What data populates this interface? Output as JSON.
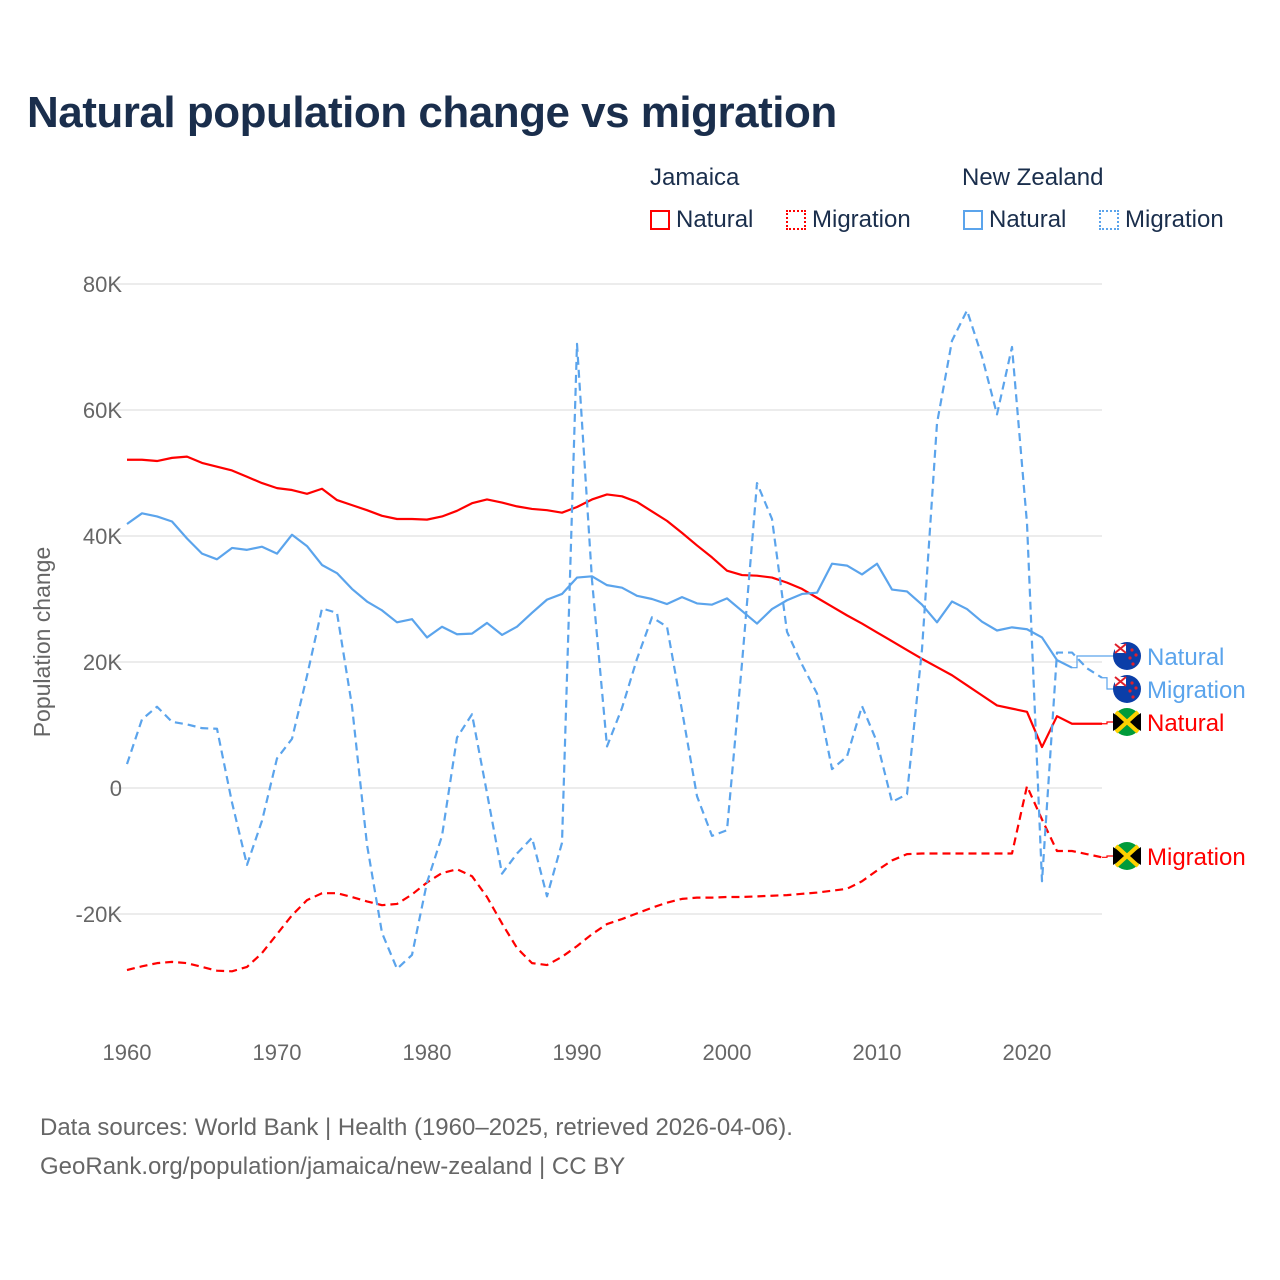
{
  "title": "Natural population change vs migration",
  "legend": {
    "groups": [
      {
        "name": "Jamaica",
        "items": [
          "Natural",
          "Migration"
        ],
        "color": "#ff0000"
      },
      {
        "name": "New Zealand",
        "items": [
          "Natural",
          "Migration"
        ],
        "color": "#5ba4ec"
      }
    ]
  },
  "footer": {
    "line1": "Data sources: World Bank | Health (1960–2025, retrieved 2026-04-06).",
    "line2": "GeoRank.org/population/jamaica/new-zealand | CC BY"
  },
  "chart_data": {
    "type": "line",
    "title": "Natural population change vs migration",
    "xlabel": "",
    "ylabel": "Population change",
    "xlim": [
      1960,
      2025
    ],
    "ylim": [
      -30000,
      80000
    ],
    "x_ticks": [
      "1960",
      "1970",
      "1980",
      "1990",
      "2000",
      "2010",
      "2020"
    ],
    "y_ticks": [
      {
        "v": 80000,
        "label": "80K"
      },
      {
        "v": 60000,
        "label": "60K"
      },
      {
        "v": 40000,
        "label": "40K"
      },
      {
        "v": 20000,
        "label": "20K"
      },
      {
        "v": 0,
        "label": "0"
      },
      {
        "v": -20000,
        "label": "-20K"
      }
    ],
    "grid": true,
    "legend_position": "top-right",
    "series": [
      {
        "name": "Jamaica Natural",
        "end_label": "Natural",
        "color": "#ff0000",
        "dash": false,
        "flag": "jamaica",
        "x_start": 1960,
        "values": [
          52100,
          52100,
          51900,
          52400,
          52600,
          51600,
          51000,
          50400,
          49400,
          48400,
          47600,
          47300,
          46700,
          47500,
          45700,
          44900,
          44100,
          43200,
          42700,
          42700,
          42600,
          43100,
          44000,
          45200,
          45800,
          45300,
          44700,
          44300,
          44100,
          43700,
          44600,
          45800,
          46600,
          46300,
          45400,
          43900,
          42400,
          40500,
          38500,
          36600,
          34500,
          33800,
          33700,
          33400,
          32600,
          31600,
          30200,
          28800,
          27400,
          26100,
          24700,
          23300,
          21900,
          20500,
          19200,
          17900,
          16300,
          14700,
          13100,
          12600,
          12100,
          6500,
          11400,
          10200,
          10200,
          10200
        ]
      },
      {
        "name": "Jamaica Migration",
        "end_label": "Migration",
        "color": "#ff0000",
        "dash": true,
        "flag": "jamaica",
        "x_start": 1960,
        "values": [
          -28900,
          -28300,
          -27800,
          -27600,
          -27800,
          -28400,
          -29000,
          -29100,
          -28400,
          -26200,
          -23200,
          -20200,
          -17800,
          -16700,
          -16700,
          -17300,
          -18000,
          -18600,
          -18400,
          -16900,
          -15000,
          -13500,
          -12900,
          -14000,
          -17300,
          -21500,
          -25400,
          -27800,
          -28100,
          -26800,
          -25100,
          -23200,
          -21600,
          -20800,
          -19900,
          -19000,
          -18200,
          -17600,
          -17400,
          -17400,
          -17300,
          -17300,
          -17200,
          -17100,
          -17000,
          -16800,
          -16600,
          -16300,
          -16000,
          -14800,
          -13100,
          -11500,
          -10500,
          -10400,
          -10400,
          -10400,
          -10400,
          -10400,
          -10400,
          -10400,
          300,
          -5000,
          -10000,
          -10000,
          -10500,
          -11000
        ]
      },
      {
        "name": "New Zealand Natural",
        "end_label": "Natural",
        "color": "#5ba4ec",
        "dash": false,
        "flag": "nz",
        "x_start": 1960,
        "values": [
          41900,
          43600,
          43100,
          42300,
          39600,
          37200,
          36300,
          38100,
          37800,
          38300,
          37200,
          40200,
          38400,
          35400,
          34100,
          31600,
          29600,
          28200,
          26300,
          26800,
          23900,
          25600,
          24400,
          24500,
          26200,
          24300,
          25600,
          27800,
          29900,
          30800,
          33400,
          33600,
          32200,
          31800,
          30500,
          30000,
          29200,
          30300,
          29300,
          29100,
          30100,
          28100,
          26100,
          28400,
          29800,
          30800,
          31000,
          35600,
          35300,
          33900,
          35600,
          31500,
          31200,
          29100,
          26300,
          29600,
          28400,
          26400,
          25000,
          25500,
          25200,
          23900,
          20300,
          19100
        ]
      },
      {
        "name": "New Zealand Migration",
        "end_label": "Migration",
        "color": "#5ba4ec",
        "dash": true,
        "flag": "nz",
        "x_start": 1960,
        "values": [
          3800,
          10900,
          12900,
          10500,
          10100,
          9500,
          9400,
          -2300,
          -12200,
          -5200,
          4700,
          7800,
          17800,
          28500,
          27800,
          13000,
          -9000,
          -23000,
          -28700,
          -26500,
          -15000,
          -7600,
          8000,
          11700,
          -800,
          -13600,
          -10400,
          -7900,
          -17200,
          -8700,
          70500,
          33000,
          6600,
          12700,
          20500,
          27100,
          25600,
          12300,
          -1300,
          -7600,
          -6700,
          19800,
          48400,
          42700,
          24800,
          19600,
          15000,
          3000,
          5000,
          13000,
          7300,
          -2200,
          -1000,
          22000,
          57900,
          71000,
          75800,
          68500,
          59300,
          70000,
          42000,
          -14800,
          21500,
          21500,
          19000,
          17500
        ]
      }
    ]
  }
}
